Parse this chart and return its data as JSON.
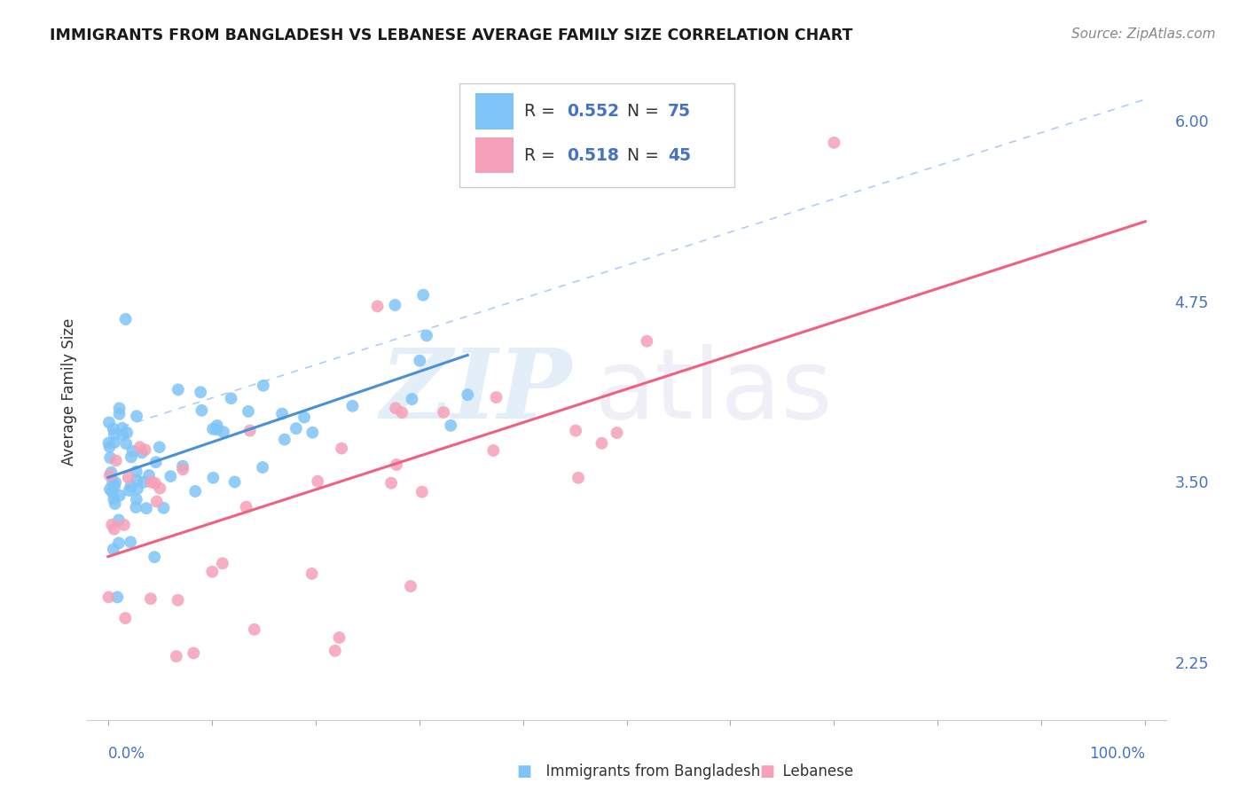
{
  "title": "IMMIGRANTS FROM BANGLADESH VS LEBANESE AVERAGE FAMILY SIZE CORRELATION CHART",
  "source": "Source: ZipAtlas.com",
  "ylabel": "Average Family Size",
  "right_yticks": [
    2.25,
    3.5,
    4.75,
    6.0
  ],
  "legend_blue_R": "0.552",
  "legend_blue_N": "75",
  "legend_pink_R": "0.518",
  "legend_pink_N": "45",
  "legend_label_blue": "Immigrants from Bangladesh",
  "legend_label_pink": "Lebanese",
  "blue_color": "#7fc4f7",
  "pink_color": "#f5a0b8",
  "trend_blue_color": "#4a90d9",
  "trend_pink_color": "#f06080",
  "diagonal_color": "#90b8e8",
  "background_color": "#ffffff",
  "ylim_low": 1.85,
  "ylim_high": 6.4,
  "xlim_low": -2,
  "xlim_high": 102
}
